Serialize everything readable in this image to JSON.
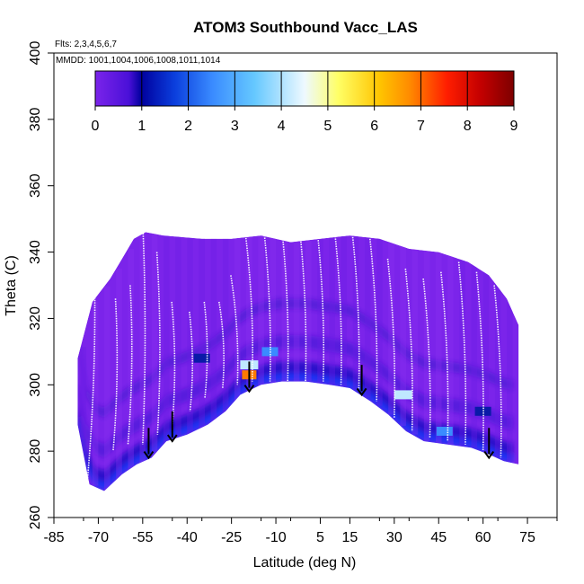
{
  "chart_data": {
    "type": "heatmap",
    "title": "ATOM3 Southbound Vacc_LAS",
    "flights_note": "Flts: 2,3,4,5,6,7",
    "dates_note": "MMDD: 1001,1004,1006,1008,1011,1014",
    "xlabel": "Latitude (deg N)",
    "ylabel": "Theta (C)",
    "xlim": [
      -85,
      85
    ],
    "ylim": [
      260,
      400
    ],
    "x_ticks": [
      -85,
      -70,
      -55,
      -40,
      -25,
      -10,
      5,
      15,
      30,
      45,
      60,
      75
    ],
    "y_ticks": [
      260,
      280,
      300,
      320,
      340,
      360,
      380,
      400
    ],
    "grid": false,
    "colorbar": {
      "min": 0,
      "max": 9,
      "ticks": [
        0,
        1,
        2,
        3,
        4,
        5,
        6,
        7,
        8,
        9
      ],
      "colors": [
        "#7b24ea",
        "#00009e",
        "#3a8bff",
        "#dff4ff",
        "#ffff00",
        "#ff8c00",
        "#ff0000",
        "#8b0000"
      ],
      "placement": "top, inside plot"
    },
    "upper_envelope": [
      [
        -77,
        308
      ],
      [
        -72,
        325
      ],
      [
        -66,
        332
      ],
      [
        -62,
        338
      ],
      [
        -58,
        344
      ],
      [
        -54,
        346
      ],
      [
        -48,
        345
      ],
      [
        -35,
        344
      ],
      [
        -25,
        344
      ],
      [
        -15,
        345
      ],
      [
        -5,
        343
      ],
      [
        5,
        344
      ],
      [
        15,
        345
      ],
      [
        25,
        344
      ],
      [
        35,
        341
      ],
      [
        45,
        340
      ],
      [
        55,
        337
      ],
      [
        62,
        333
      ],
      [
        68,
        326
      ],
      [
        72,
        318
      ]
    ],
    "lower_envelope": [
      [
        -77,
        288
      ],
      [
        -73,
        270
      ],
      [
        -68,
        268
      ],
      [
        -62,
        273
      ],
      [
        -57,
        276
      ],
      [
        -52,
        278
      ],
      [
        -47,
        283
      ],
      [
        -40,
        285
      ],
      [
        -33,
        288
      ],
      [
        -27,
        292
      ],
      [
        -22,
        297
      ],
      [
        -15,
        300
      ],
      [
        -8,
        301
      ],
      [
        0,
        301
      ],
      [
        8,
        300
      ],
      [
        15,
        299
      ],
      [
        22,
        295
      ],
      [
        28,
        291
      ],
      [
        34,
        286
      ],
      [
        40,
        283
      ],
      [
        48,
        282
      ],
      [
        56,
        281
      ],
      [
        62,
        279
      ],
      [
        67,
        277
      ],
      [
        72,
        276
      ]
    ],
    "high_values": [
      {
        "lat": -19,
        "theta": 303,
        "value": 7
      },
      {
        "lat": -19,
        "theta": 306,
        "value": 4
      },
      {
        "lat": 33,
        "theta": 297,
        "value": 4
      },
      {
        "lat": -12,
        "theta": 310,
        "value": 2
      },
      {
        "lat": 47,
        "theta": 286,
        "value": 2
      },
      {
        "lat": -35,
        "theta": 308,
        "value": 1
      },
      {
        "lat": 60,
        "theta": 292,
        "value": 1
      }
    ],
    "arrows": [
      {
        "lat": -53,
        "theta_top": 287,
        "theta_bottom": 278
      },
      {
        "lat": -45,
        "theta_top": 292,
        "theta_bottom": 283
      },
      {
        "lat": -19,
        "theta_top": 307,
        "theta_bottom": 298
      },
      {
        "lat": 19,
        "theta_top": 306,
        "theta_bottom": 297
      },
      {
        "lat": 62,
        "theta_top": 287,
        "theta_bottom": 278
      }
    ],
    "profiles": [
      {
        "lat_top": -70,
        "lat_bottom": -74,
        "theta_top": 330,
        "theta_bottom": 268
      },
      {
        "lat_top": -63,
        "lat_bottom": -65,
        "theta_top": 326,
        "theta_bottom": 280
      },
      {
        "lat_top": -58,
        "lat_bottom": -60,
        "theta_top": 330,
        "theta_bottom": 282
      },
      {
        "lat_top": -54,
        "lat_bottom": -55,
        "theta_top": 353,
        "theta_bottom": 282
      },
      {
        "lat_top": -49,
        "lat_bottom": -50,
        "theta_top": 340,
        "theta_bottom": 285
      },
      {
        "lat_top": -44,
        "lat_bottom": -45,
        "theta_top": 325,
        "theta_bottom": 288
      },
      {
        "lat_top": -38,
        "lat_bottom": -39,
        "theta_top": 322,
        "theta_bottom": 292
      },
      {
        "lat_top": -33,
        "lat_bottom": -34,
        "theta_top": 325,
        "theta_bottom": 296
      },
      {
        "lat_top": -28,
        "lat_bottom": -28,
        "theta_top": 325,
        "theta_bottom": 299
      },
      {
        "lat_top": -24,
        "lat_bottom": -23,
        "theta_top": 333,
        "theta_bottom": 300
      },
      {
        "lat_top": -19,
        "lat_bottom": -18,
        "theta_top": 345,
        "theta_bottom": 301
      },
      {
        "lat_top": -13,
        "lat_bottom": -12,
        "theta_top": 348,
        "theta_bottom": 301
      },
      {
        "lat_top": -7,
        "lat_bottom": -6,
        "theta_top": 349,
        "theta_bottom": 301
      },
      {
        "lat_top": -1,
        "lat_bottom": 0,
        "theta_top": 349,
        "theta_bottom": 301
      },
      {
        "lat_top": 5,
        "lat_bottom": 6,
        "theta_top": 348,
        "theta_bottom": 301
      },
      {
        "lat_top": 11,
        "lat_bottom": 12,
        "theta_top": 347,
        "theta_bottom": 300
      },
      {
        "lat_top": 17,
        "lat_bottom": 18,
        "theta_top": 346,
        "theta_bottom": 298
      },
      {
        "lat_top": 23,
        "lat_bottom": 24,
        "theta_top": 344,
        "theta_bottom": 295
      },
      {
        "lat_top": 29,
        "lat_bottom": 30,
        "theta_top": 338,
        "theta_bottom": 290
      },
      {
        "lat_top": 35,
        "lat_bottom": 36,
        "theta_top": 335,
        "theta_bottom": 286
      },
      {
        "lat_top": 41,
        "lat_bottom": 42,
        "theta_top": 332,
        "theta_bottom": 284
      },
      {
        "lat_top": 47,
        "lat_bottom": 48,
        "theta_top": 334,
        "theta_bottom": 283
      },
      {
        "lat_top": 53,
        "lat_bottom": 54,
        "theta_top": 337,
        "theta_bottom": 282
      },
      {
        "lat_top": 59,
        "lat_bottom": 60,
        "theta_top": 334,
        "theta_bottom": 280
      },
      {
        "lat_top": 65,
        "lat_bottom": 66,
        "theta_top": 330,
        "theta_bottom": 278
      }
    ]
  }
}
